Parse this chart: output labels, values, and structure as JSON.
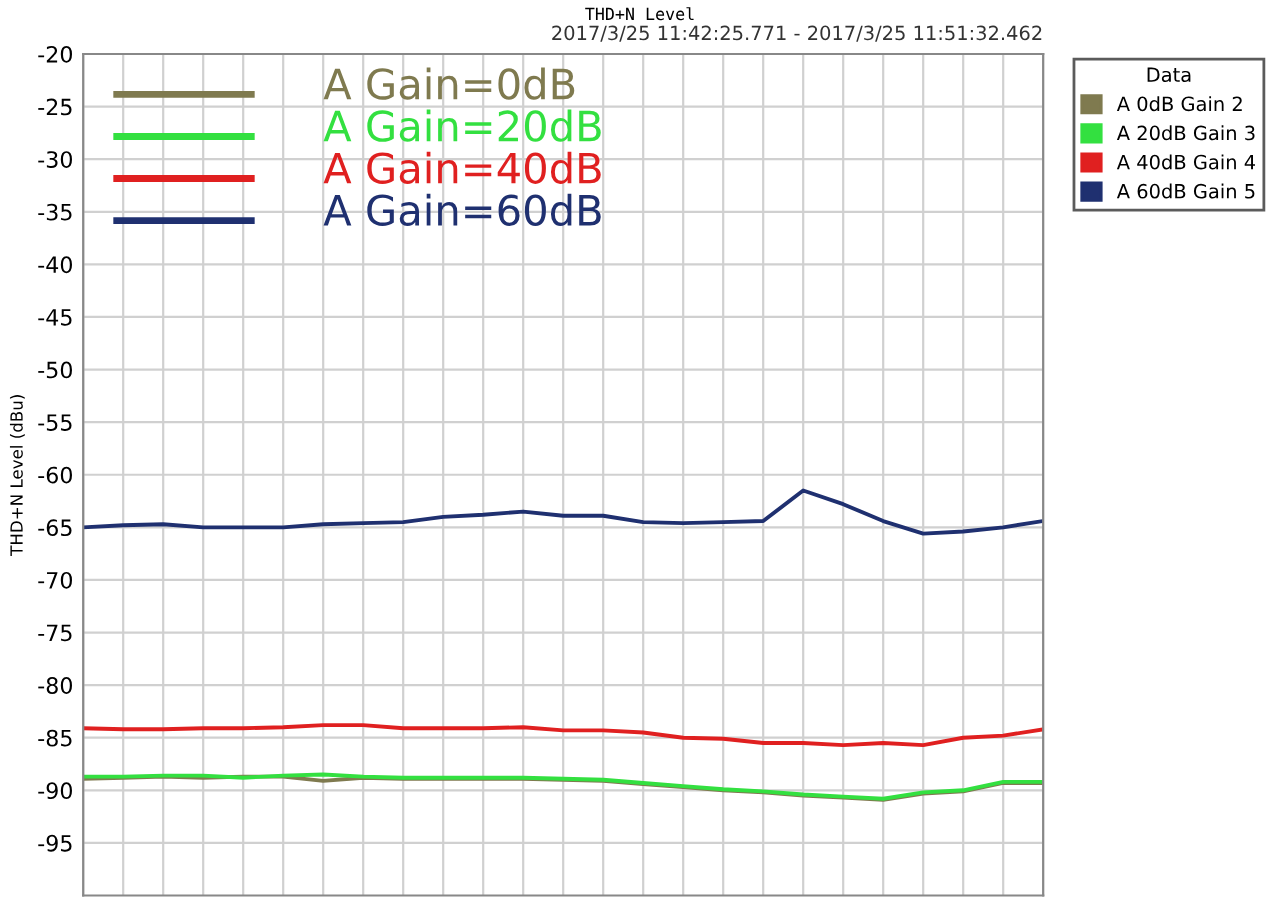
{
  "chart_data": {
    "type": "line",
    "title": "THD+N Level",
    "subtitle": "2017/3/25 11:42:25.771 - 2017/3/25 11:51:32.462",
    "ylabel": "THD+N Level (dBu)",
    "legend_title": "Data",
    "annotations": [
      "A Gain=0dB",
      "A Gain=20dB",
      "A Gain=40dB",
      "A Gain=60dB"
    ],
    "categories": [
      null,
      null,
      null,
      null,
      null,
      null,
      null,
      null,
      null,
      null,
      null,
      null,
      null,
      null,
      null,
      null,
      null,
      null,
      null,
      null,
      null,
      null,
      null,
      null,
      null
    ],
    "series": [
      {
        "name": "A 0dB Gain 2",
        "color": "#7f7a4f",
        "values": [
          -88.9,
          -88.8,
          -88.7,
          -88.8,
          -88.7,
          -88.7,
          -89.1,
          -88.8,
          -88.9,
          -88.9,
          -88.9,
          -88.9,
          -89.0,
          -89.1,
          -89.4,
          -89.7,
          -90.0,
          -90.2,
          -90.5,
          -90.7,
          -90.9,
          -90.3,
          -90.1,
          -89.3,
          -89.3
        ]
      },
      {
        "name": "A 20dB Gain 3",
        "color": "#33e040",
        "values": [
          -88.7,
          -88.7,
          -88.6,
          -88.6,
          -88.8,
          -88.6,
          -88.5,
          -88.7,
          -88.8,
          -88.8,
          -88.8,
          -88.8,
          -88.9,
          -89.0,
          -89.3,
          -89.6,
          -89.9,
          -90.1,
          -90.4,
          -90.6,
          -90.8,
          -90.2,
          -90.0,
          -89.2,
          -89.2
        ]
      },
      {
        "name": "A 40dB Gain 4",
        "color": "#e02020",
        "values": [
          -84.1,
          -84.2,
          -84.2,
          -84.1,
          -84.1,
          -84.0,
          -83.8,
          -83.8,
          -84.1,
          -84.1,
          -84.1,
          -84.0,
          -84.3,
          -84.3,
          -84.5,
          -85.0,
          -85.1,
          -85.5,
          -85.5,
          -85.7,
          -85.5,
          -85.7,
          -85.0,
          -84.8,
          -84.2
        ]
      },
      {
        "name": "A 60dB Gain 5",
        "color": "#1f3070",
        "values": [
          -65.0,
          -64.8,
          -64.7,
          -65.0,
          -65.0,
          -65.0,
          -64.7,
          -64.6,
          -64.5,
          -64.0,
          -63.8,
          -63.5,
          -63.9,
          -63.9,
          -64.5,
          -64.6,
          -64.5,
          -64.4,
          -61.5,
          -62.8,
          -64.4,
          -65.6,
          -65.4,
          -65.0,
          -64.4
        ]
      }
    ],
    "ylim": [
      -100,
      -20
    ],
    "yticks": [
      -95,
      -90,
      -85,
      -80,
      -75,
      -70,
      -65,
      -60,
      -55,
      -50,
      -45,
      -40,
      -35,
      -30,
      -25,
      -20
    ],
    "grid": true,
    "legend": "top right",
    "marker": "none",
    "line_style": "solid"
  }
}
